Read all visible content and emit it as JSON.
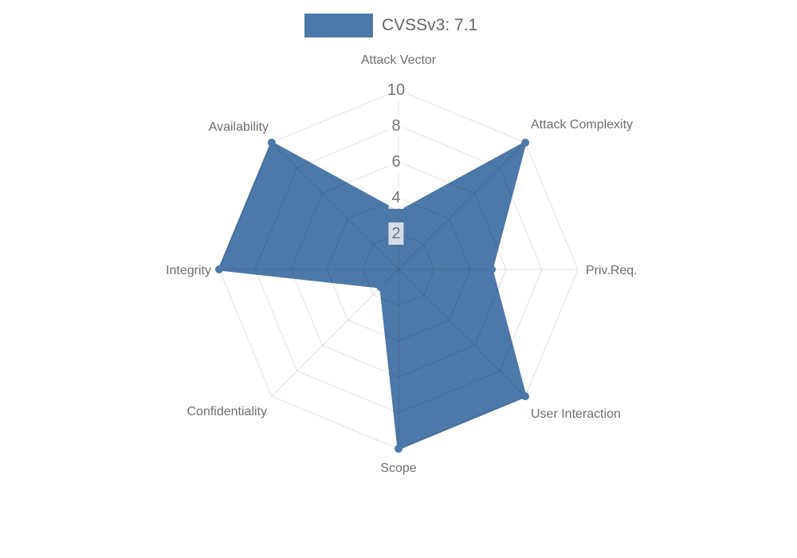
{
  "legend": {
    "label": "CVSSv3: 7.1",
    "color": "#4d79a8"
  },
  "chart_data": {
    "type": "radar",
    "title": "CVSSv3: 7.1",
    "categories": [
      "Attack Vector",
      "Attack Complexity",
      "Priv.Req.",
      "User Interaction",
      "Scope",
      "Confidentiality",
      "Integrity",
      "Availability"
    ],
    "series": [
      {
        "name": "CVSSv3: 7.1",
        "color": "#4d79a8",
        "values": [
          3.2,
          10,
          5.2,
          10,
          10,
          1.4,
          10,
          10
        ]
      }
    ],
    "ticks": [
      2,
      4,
      6,
      8,
      10
    ],
    "rlim": [
      0,
      10
    ],
    "grid": "web",
    "legend_position": "top",
    "colors": {
      "fill": "#4d79a8",
      "fill_opacity": 1,
      "grid_line": "rgba(0,0,0,0.12)",
      "tick_text": "#757575",
      "tick_backdrop": "rgba(255,255,255,0.75)",
      "label_text": "#6e6e6e",
      "legend_text": "#666666"
    }
  }
}
